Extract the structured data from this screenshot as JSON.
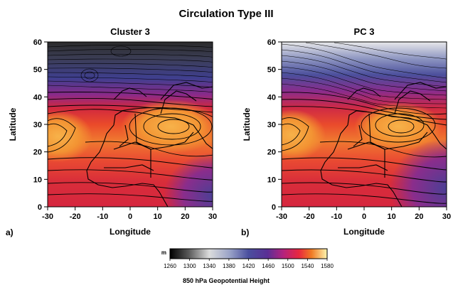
{
  "figure": {
    "title": "Circulation Type III",
    "panels": [
      {
        "letter": "a)",
        "subtitle": "Cluster 3",
        "xlabel": "Longitude",
        "ylabel": "Latitude",
        "xticks": [
          "-30",
          "-20",
          "-10",
          "0",
          "10",
          "20",
          "30"
        ],
        "yticks": [
          "0",
          "10",
          "20",
          "30",
          "40",
          "50",
          "60"
        ]
      },
      {
        "letter": "b)",
        "subtitle": "PC 3",
        "xlabel": "Longitude",
        "ylabel": "Latitude",
        "xticks": [
          "-30",
          "-20",
          "-10",
          "0",
          "10",
          "20",
          "30"
        ],
        "yticks": [
          "0",
          "10",
          "20",
          "30",
          "40",
          "50",
          "60"
        ]
      }
    ]
  },
  "colorbar": {
    "unit": "m",
    "ticks": [
      "1260",
      "1300",
      "1340",
      "1380",
      "1420",
      "1460",
      "1500",
      "1540",
      "1580"
    ],
    "label": "850 hPa Geopotential Height"
  },
  "map_data": {
    "variable": "850 hPa geopotential height",
    "units": "m",
    "lon_range": [
      -30,
      30
    ],
    "lat_range": [
      0,
      60
    ],
    "color_range": [
      1260,
      1580
    ]
  }
}
